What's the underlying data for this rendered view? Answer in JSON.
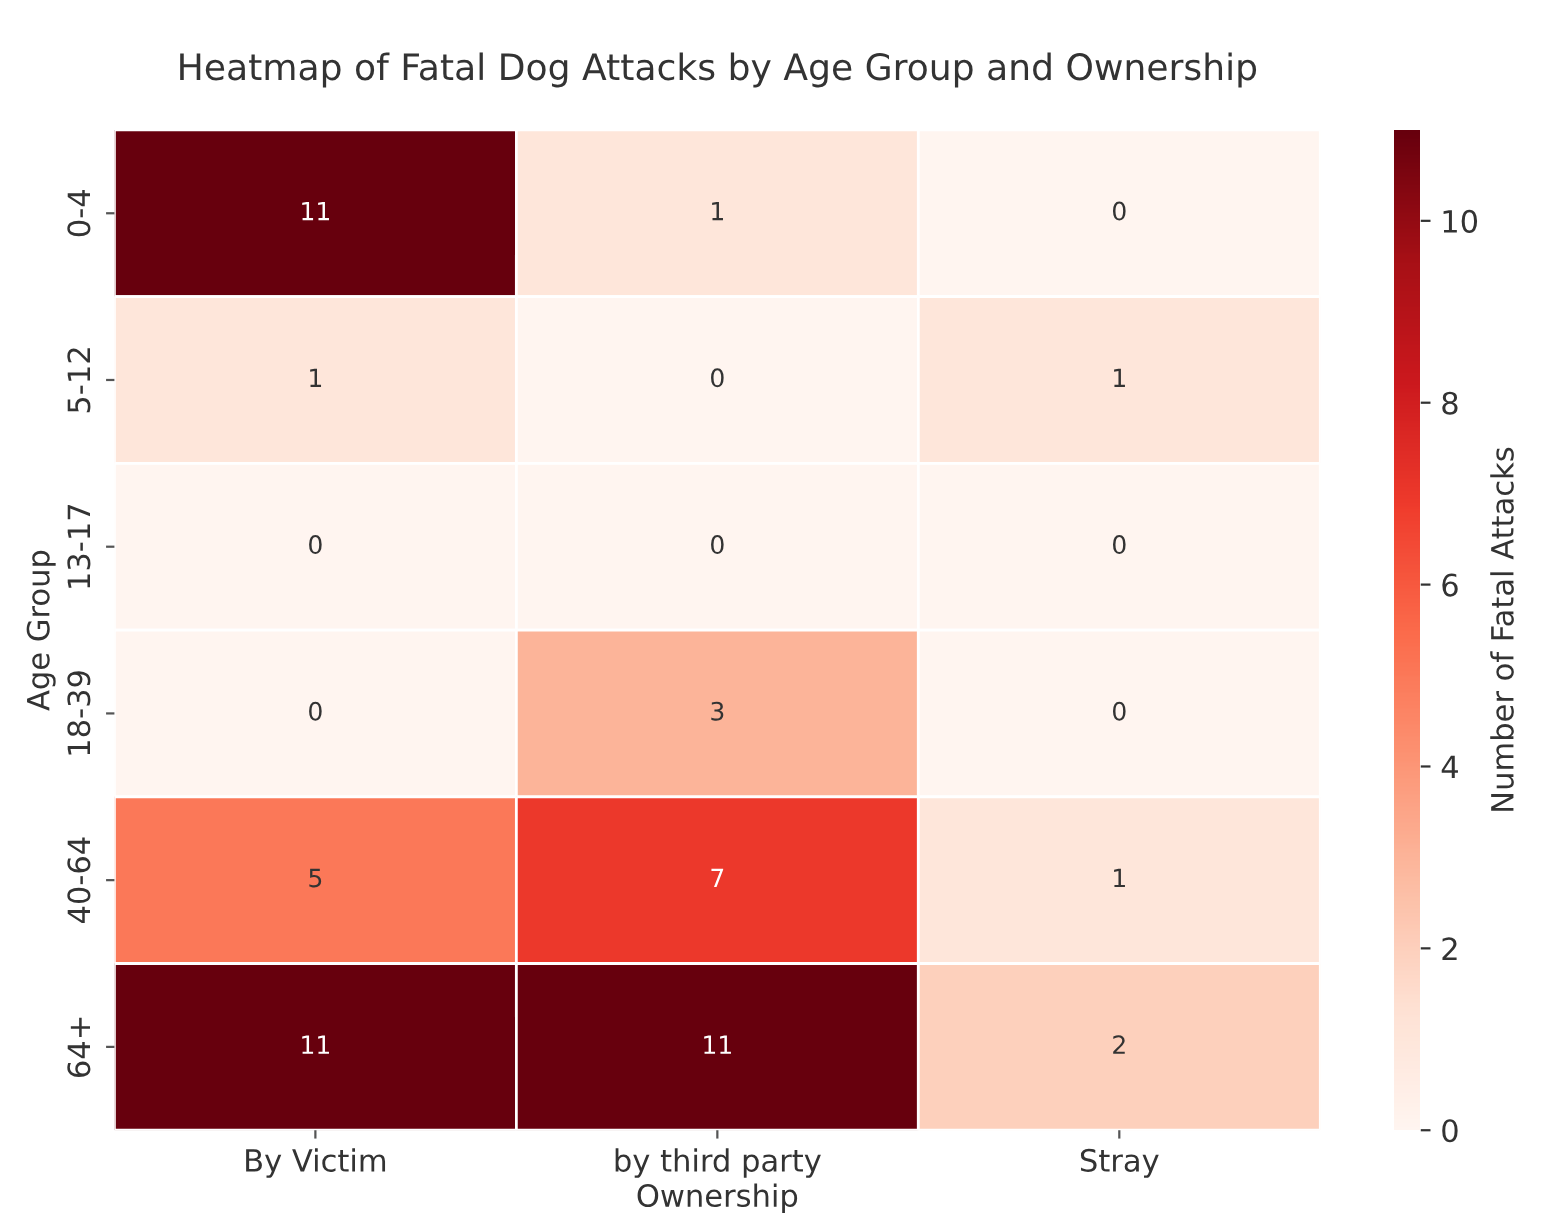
{
  "chart_data": {
    "type": "heatmap",
    "title": "Heatmap of Fatal Dog Attacks by Age Group and Ownership",
    "xlabel": "Ownership",
    "ylabel": "Age Group",
    "clabel": "Number of Fatal Attacks",
    "categories": [
      "By Victim",
      "by third party",
      "Stray"
    ],
    "y_categories": [
      "0-4",
      "5-12",
      "13-17",
      "18-39",
      "40-64",
      "64+"
    ],
    "cells": [
      [
        11,
        1,
        0
      ],
      [
        1,
        0,
        1
      ],
      [
        0,
        0,
        0
      ],
      [
        0,
        3,
        0
      ],
      [
        5,
        7,
        1
      ],
      [
        11,
        11,
        2
      ]
    ],
    "clim": [
      0,
      11
    ],
    "cticks": [
      0,
      2,
      4,
      6,
      8,
      10
    ],
    "data_labels": true
  }
}
